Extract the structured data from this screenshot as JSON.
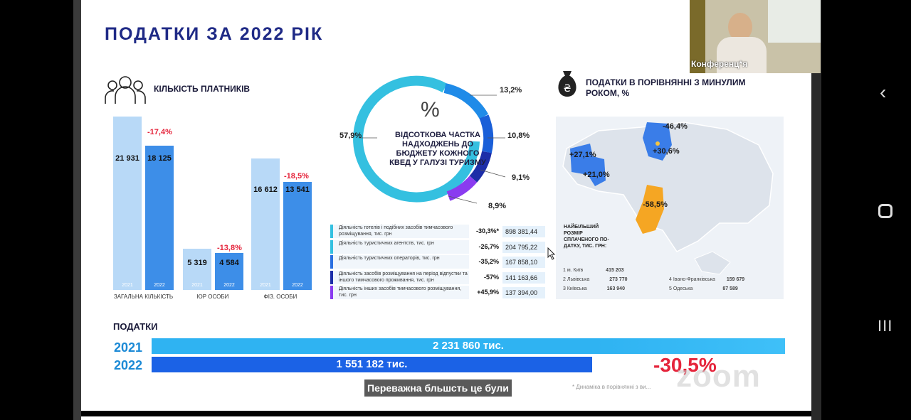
{
  "slide": {
    "title": "ПОДАТКИ ЗА 2022 РІК",
    "payers": {
      "heading": "КІЛЬКІСТЬ ПЛАТНИКІВ",
      "groups": [
        {
          "label": "ЗАГАЛЬНА КІЛЬКІСТЬ",
          "v2021": "21 931",
          "v2022": "18 125",
          "change": "-17,4%"
        },
        {
          "label": "ЮР ОСОБИ",
          "v2021": "5 319",
          "v2022": "4 584",
          "change": "-13,8%"
        },
        {
          "label": "ФІЗ. ОСОБИ",
          "v2021": "16 612",
          "v2022": "13 541",
          "change": "-18,5%"
        }
      ],
      "year_a": "2021",
      "year_b": "2022"
    },
    "ring": {
      "center_symbol": "%",
      "center_text": "ВІДСОТКОВА ЧАСТКА НАДХОДЖЕНЬ ДО БЮДЖЕТУ КОЖНОГО КВЕД У ГАЛУЗІ ТУРИЗМУ",
      "labels": [
        "57,9%",
        "13,2%",
        "10,8%",
        "9,1%",
        "8,9%"
      ]
    },
    "activities": [
      {
        "desc": "Діяльність готелів і подібних засобів тимчасового розміщування, тис. грн",
        "pct": "-30,3%*",
        "value": "898 381,44",
        "color": "#34c0e0"
      },
      {
        "desc": "Діяльність туристичних агентств, тис. грн",
        "pct": "-26,7%",
        "value": "204 795,22",
        "color": "#34c0e0"
      },
      {
        "desc": "Діяльність туристичних операторів, тис. грн",
        "pct": "-35,2%",
        "value": "167 858,10",
        "color": "#2a6fe0"
      },
      {
        "desc": "Діяльність засобів розміщування на період відпустки та іншого тимчасового проживання, тис. грн",
        "pct": "-57%",
        "value": "141 163,66",
        "color": "#1d2ea8"
      },
      {
        "desc": "Діяльність інших засобів тимчасового розміщування, тис. грн",
        "pct": "+45,9%",
        "value": "137 394,00",
        "color": "#8a3cf0"
      }
    ],
    "compare": {
      "heading": "ПОДАТКИ В ПОРІВНЯННІ З МИНУЛИМ РОКОМ, %",
      "map_pcts": [
        "-46,4%",
        "+30,6%",
        "+27,1%",
        "+21,0%",
        "-58,5%"
      ],
      "biggest_label": "НАЙБІЛЬШИЙ РОЗМІР СПЛАЧЕНОГО ПО- ДАТКУ, ТИС. ГРН:",
      "regions": [
        {
          "num": "1",
          "name": "м. Київ",
          "value": "415 203"
        },
        {
          "num": "2",
          "name": "Львівська",
          "value": "273 770"
        },
        {
          "num": "3",
          "name": "Київська",
          "value": "163 940"
        },
        {
          "num": "4",
          "name": "Івано-Франківська",
          "value": "159 679"
        },
        {
          "num": "5",
          "name": "Одеська",
          "value": "87 589"
        }
      ]
    },
    "taxes": {
      "heading": "ПОДАТКИ",
      "year_a": "2021",
      "value_a": "2 231 860 тис.",
      "year_b": "2022",
      "value_b": "1 551 182 тис.",
      "change": "-30,5%",
      "footnote": "* Динаміка в порівнянні з ви..."
    }
  },
  "caption": "Переважна бльшсть це були",
  "webcam_label": "Конференц*я",
  "watermark": "zoom"
}
